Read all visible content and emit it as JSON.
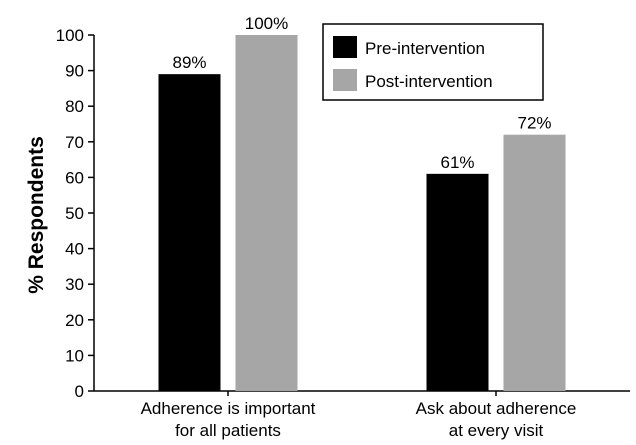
{
  "chart_data": {
    "type": "bar",
    "ylabel": "% Respondents",
    "ylim": [
      0,
      100
    ],
    "yticks": [
      0,
      10,
      20,
      30,
      40,
      50,
      60,
      70,
      80,
      90,
      100
    ],
    "categories": [
      [
        "Adherence is important",
        "for all patients"
      ],
      [
        "Ask about adherence",
        "at every visit"
      ]
    ],
    "series": [
      {
        "name": "Pre-intervention",
        "color": "#000000",
        "values": [
          89,
          61
        ],
        "labels": [
          "89%",
          "61%"
        ]
      },
      {
        "name": "Post-intervention",
        "color": "#a6a6a6",
        "values": [
          100,
          72
        ],
        "labels": [
          "100%",
          "72%"
        ]
      }
    ],
    "legend_position": "top-right",
    "grid": false
  }
}
